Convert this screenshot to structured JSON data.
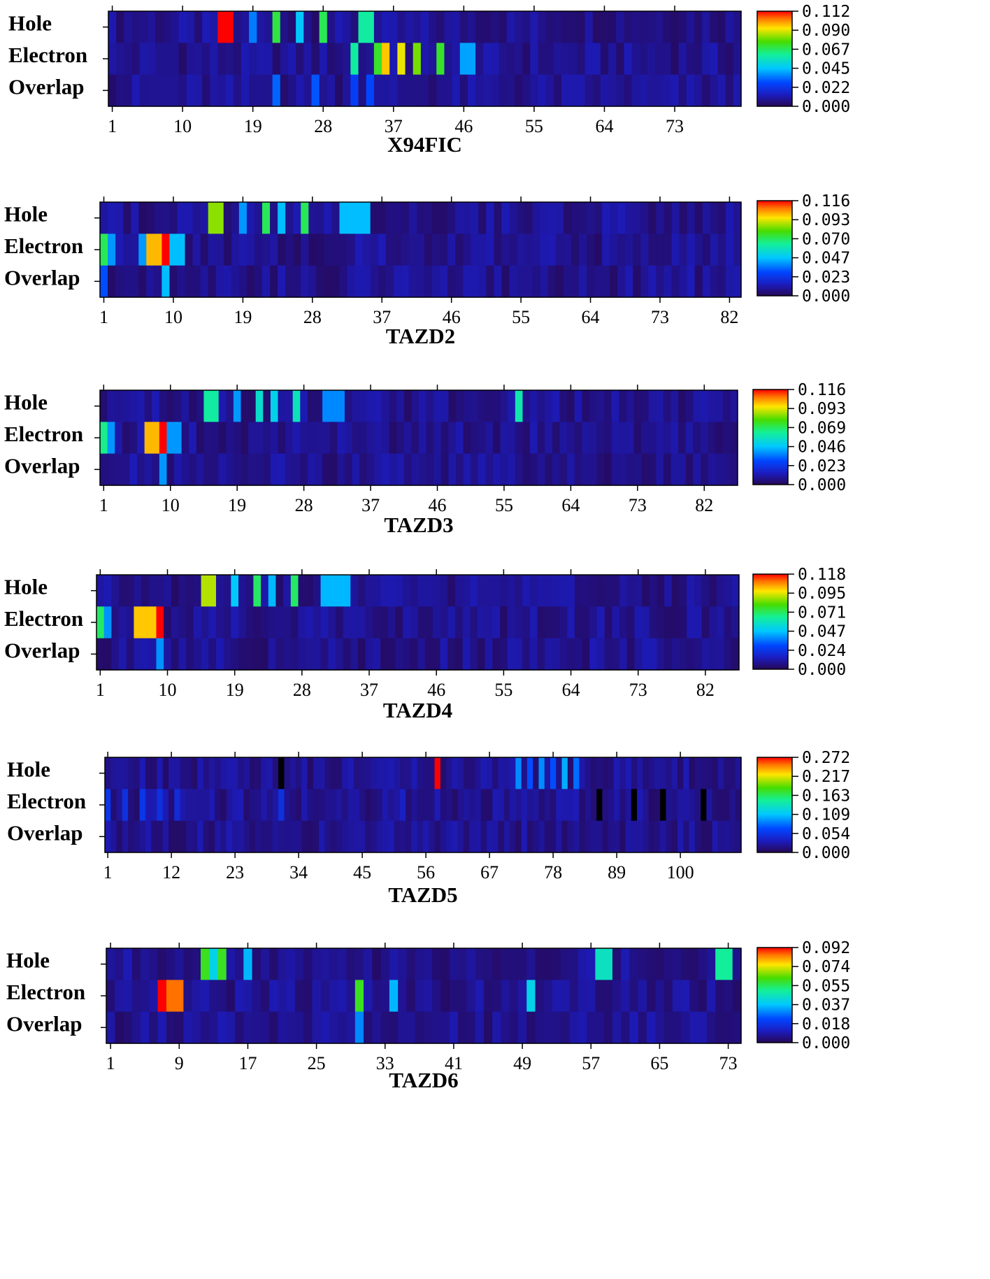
{
  "panels": [
    {
      "title": "X94FIC",
      "n": 81,
      "xticks": [
        "1",
        "10",
        "19",
        "28",
        "37",
        "46",
        "55",
        "64",
        "73"
      ],
      "cb": [
        "0.112",
        "0.090",
        "0.067",
        "0.045",
        "0.022",
        "0.000"
      ]
    },
    {
      "title": "TAZD2",
      "n": 83,
      "xticks": [
        "1",
        "10",
        "19",
        "28",
        "37",
        "46",
        "55",
        "64",
        "73",
        "82"
      ],
      "cb": [
        "0.116",
        "0.093",
        "0.070",
        "0.047",
        "0.023",
        "0.000"
      ]
    },
    {
      "title": "TAZD3",
      "n": 86,
      "xticks": [
        "1",
        "10",
        "19",
        "28",
        "37",
        "46",
        "55",
        "64",
        "73",
        "82"
      ],
      "cb": [
        "0.116",
        "0.093",
        "0.069",
        "0.046",
        "0.023",
        "0.000"
      ]
    },
    {
      "title": "TAZD4",
      "n": 86,
      "xticks": [
        "1",
        "10",
        "19",
        "28",
        "37",
        "46",
        "55",
        "64",
        "73",
        "82"
      ],
      "cb": [
        "0.118",
        "0.095",
        "0.071",
        "0.047",
        "0.024",
        "0.000"
      ]
    },
    {
      "title": "TAZD5",
      "n": 110,
      "xticks": [
        "1",
        "12",
        "23",
        "34",
        "45",
        "56",
        "67",
        "78",
        "89",
        "100"
      ],
      "cb": [
        "0.272",
        "0.217",
        "0.163",
        "0.109",
        "0.054",
        "0.000"
      ]
    },
    {
      "title": "TAZD6",
      "n": 74,
      "xticks": [
        "1",
        "9",
        "17",
        "25",
        "33",
        "41",
        "49",
        "57",
        "65",
        "73"
      ],
      "cb": [
        "0.092",
        "0.074",
        "0.055",
        "0.037",
        "0.018",
        "0.000"
      ]
    }
  ],
  "row_labels": [
    "Hole",
    "Electron",
    "Overlap"
  ],
  "chart_data": [
    {
      "type": "heatmap",
      "title": "X94FIC",
      "rows": [
        "Hole",
        "Electron",
        "Overlap"
      ],
      "xlim": [
        1,
        81
      ],
      "zlim": [
        0,
        0.112
      ],
      "hot": {
        "Hole": [
          [
            15,
            0.112
          ],
          [
            16,
            0.112
          ],
          [
            19,
            0.035
          ],
          [
            22,
            0.07
          ],
          [
            25,
            0.045
          ],
          [
            28,
            0.068
          ],
          [
            33,
            0.06
          ],
          [
            34,
            0.06
          ]
        ],
        "Electron": [
          [
            32,
            0.06
          ],
          [
            35,
            0.072
          ],
          [
            36,
            0.095
          ],
          [
            38,
            0.09
          ],
          [
            40,
            0.08
          ],
          [
            43,
            0.072
          ],
          [
            46,
            0.04
          ],
          [
            47,
            0.04
          ]
        ],
        "Overlap": [
          [
            22,
            0.032
          ],
          [
            27,
            0.03
          ],
          [
            32,
            0.025
          ],
          [
            34,
            0.028
          ]
        ]
      }
    },
    {
      "type": "heatmap",
      "title": "TAZD2",
      "rows": [
        "Hole",
        "Electron",
        "Overlap"
      ],
      "xlim": [
        1,
        83
      ],
      "zlim": [
        0,
        0.116
      ],
      "hot": {
        "Hole": [
          [
            15,
            0.085
          ],
          [
            16,
            0.085
          ],
          [
            19,
            0.04
          ],
          [
            22,
            0.07
          ],
          [
            24,
            0.045
          ],
          [
            27,
            0.07
          ],
          [
            32,
            0.045
          ],
          [
            33,
            0.045
          ],
          [
            34,
            0.045
          ],
          [
            35,
            0.045
          ]
        ],
        "Electron": [
          [
            1,
            0.07
          ],
          [
            2,
            0.04
          ],
          [
            6,
            0.04
          ],
          [
            7,
            0.1
          ],
          [
            8,
            0.1
          ],
          [
            9,
            0.116
          ],
          [
            10,
            0.045
          ],
          [
            11,
            0.045
          ]
        ],
        "Overlap": [
          [
            1,
            0.03
          ],
          [
            9,
            0.045
          ]
        ]
      }
    },
    {
      "type": "heatmap",
      "title": "TAZD3",
      "rows": [
        "Hole",
        "Electron",
        "Overlap"
      ],
      "xlim": [
        1,
        86
      ],
      "zlim": [
        0,
        0.116
      ],
      "hot": {
        "Hole": [
          [
            15,
            0.062
          ],
          [
            16,
            0.062
          ],
          [
            19,
            0.04
          ],
          [
            22,
            0.055
          ],
          [
            24,
            0.05
          ],
          [
            27,
            0.058
          ],
          [
            31,
            0.038
          ],
          [
            32,
            0.038
          ],
          [
            33,
            0.038
          ],
          [
            57,
            0.06
          ]
        ],
        "Electron": [
          [
            1,
            0.065
          ],
          [
            2,
            0.04
          ],
          [
            7,
            0.1
          ],
          [
            8,
            0.1
          ],
          [
            9,
            0.116
          ],
          [
            10,
            0.04
          ],
          [
            11,
            0.04
          ]
        ],
        "Overlap": [
          [
            9,
            0.04
          ]
        ]
      }
    },
    {
      "type": "heatmap",
      "title": "TAZD4",
      "rows": [
        "Hole",
        "Electron",
        "Overlap"
      ],
      "xlim": [
        1,
        86
      ],
      "zlim": [
        0,
        0.118
      ],
      "hot": {
        "Hole": [
          [
            15,
            0.09
          ],
          [
            16,
            0.09
          ],
          [
            19,
            0.048
          ],
          [
            22,
            0.07
          ],
          [
            24,
            0.045
          ],
          [
            27,
            0.07
          ],
          [
            31,
            0.045
          ],
          [
            32,
            0.045
          ],
          [
            33,
            0.045
          ],
          [
            34,
            0.045
          ]
        ],
        "Electron": [
          [
            1,
            0.07
          ],
          [
            2,
            0.04
          ],
          [
            6,
            0.1
          ],
          [
            7,
            0.1
          ],
          [
            8,
            0.1
          ],
          [
            9,
            0.118
          ]
        ],
        "Overlap": [
          [
            9,
            0.04
          ]
        ]
      }
    },
    {
      "type": "heatmap",
      "title": "TAZD5",
      "rows": [
        "Hole",
        "Electron",
        "Overlap"
      ],
      "xlim": [
        1,
        110
      ],
      "zlim": [
        0,
        0.272
      ],
      "hot": {
        "Hole": [
          [
            58,
            0.272
          ],
          [
            72,
            0.09
          ],
          [
            74,
            0.07
          ],
          [
            76,
            0.09
          ],
          [
            78,
            0.07
          ],
          [
            80,
            0.1
          ],
          [
            82,
            0.08
          ]
        ],
        "Electron": [
          [
            1,
            0.055
          ],
          [
            4,
            0.05
          ],
          [
            7,
            0.055
          ],
          [
            10,
            0.05
          ],
          [
            13,
            0.045
          ],
          [
            31,
            0.05
          ],
          [
            52,
            0.035
          ]
        ],
        "Overlap": []
      }
    },
    {
      "type": "heatmap",
      "title": "TAZD6",
      "rows": [
        "Hole",
        "Electron",
        "Overlap"
      ],
      "xlim": [
        1,
        74
      ],
      "zlim": [
        0,
        0.092
      ],
      "hot": {
        "Hole": [
          [
            12,
            0.06
          ],
          [
            13,
            0.04
          ],
          [
            14,
            0.06
          ],
          [
            17,
            0.035
          ],
          [
            58,
            0.045
          ],
          [
            59,
            0.045
          ],
          [
            72,
            0.05
          ],
          [
            73,
            0.05
          ]
        ],
        "Electron": [
          [
            7,
            0.092
          ],
          [
            8,
            0.085
          ],
          [
            9,
            0.085
          ],
          [
            30,
            0.06
          ],
          [
            34,
            0.035
          ],
          [
            50,
            0.04
          ]
        ],
        "Overlap": [
          [
            30,
            0.03
          ]
        ]
      }
    }
  ]
}
